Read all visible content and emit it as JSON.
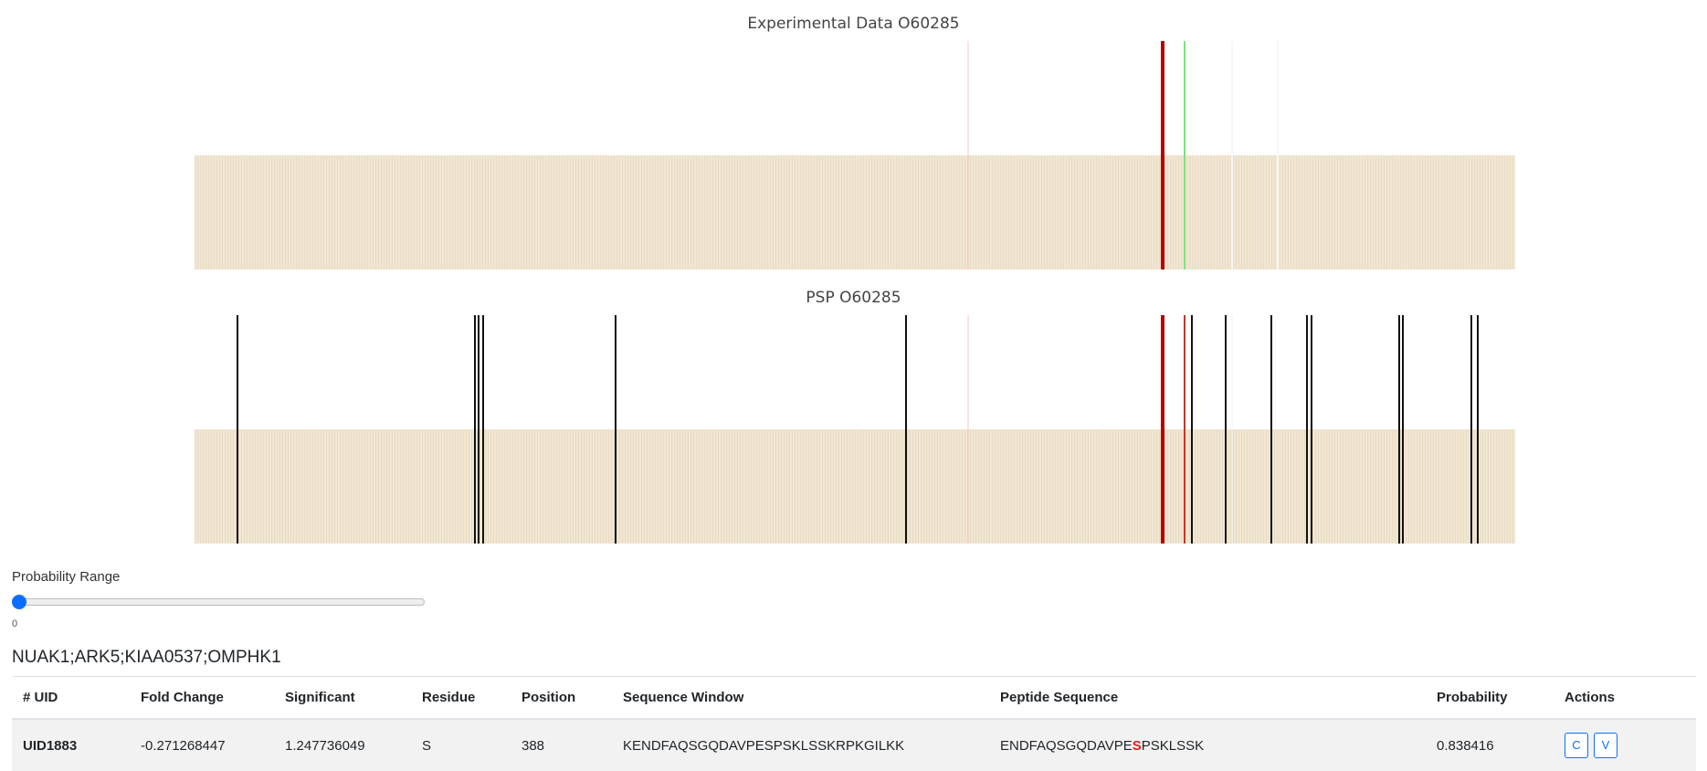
{
  "charts": {
    "experimental": {
      "title": "Experimental Data O60285",
      "marks": [
        {
          "pos": 847,
          "color": "#f2c7c7",
          "width": 1
        },
        {
          "pos": 1060,
          "color": "#b70000",
          "width": 4
        },
        {
          "pos": 1084,
          "color": "#7fe07f",
          "width": 2
        },
        {
          "pos": 1136,
          "color": "#f7f7f7",
          "width": 2
        },
        {
          "pos": 1186,
          "color": "#f7f7f7",
          "width": 2
        }
      ]
    },
    "psp": {
      "title": "PSP O60285",
      "marks": [
        {
          "pos": 47,
          "color": "#111111",
          "width": 2
        },
        {
          "pos": 307,
          "color": "#111111",
          "width": 2
        },
        {
          "pos": 311,
          "color": "#111111",
          "width": 2
        },
        {
          "pos": 316,
          "color": "#111111",
          "width": 2
        },
        {
          "pos": 461,
          "color": "#111111",
          "width": 2
        },
        {
          "pos": 779,
          "color": "#111111",
          "width": 2
        },
        {
          "pos": 847,
          "color": "#f2c7c7",
          "width": 1
        },
        {
          "pos": 1060,
          "color": "#b70000",
          "width": 4
        },
        {
          "pos": 1084,
          "color": "#c0392b",
          "width": 2
        },
        {
          "pos": 1092,
          "color": "#111111",
          "width": 2
        },
        {
          "pos": 1129,
          "color": "#111111",
          "width": 2
        },
        {
          "pos": 1136,
          "color": "#f0f0f0",
          "width": 1
        },
        {
          "pos": 1179,
          "color": "#111111",
          "width": 2
        },
        {
          "pos": 1218,
          "color": "#111111",
          "width": 2
        },
        {
          "pos": 1223,
          "color": "#111111",
          "width": 2
        },
        {
          "pos": 1319,
          "color": "#111111",
          "width": 2
        },
        {
          "pos": 1323,
          "color": "#111111",
          "width": 2
        },
        {
          "pos": 1398,
          "color": "#111111",
          "width": 2
        },
        {
          "pos": 1405,
          "color": "#111111",
          "width": 2
        }
      ]
    },
    "sequence_length": 1446,
    "background_color": "#f0e6d2"
  },
  "slider": {
    "label": "Probability Range",
    "value": "0",
    "fraction": 0
  },
  "protein_name": "NUAK1;ARK5;KIAA0537;OMPHK1",
  "table": {
    "headers": [
      "# UID",
      "Fold Change",
      "Significant",
      "Residue",
      "Position",
      "Sequence Window",
      "Peptide Sequence",
      "Probability",
      "Actions"
    ],
    "rows": [
      {
        "uid": "UID1883",
        "fold_change": "-0.271268447",
        "significant": "1.247736049",
        "residue": "S",
        "position": "388",
        "sequence_window": "KENDFAQSGQDAVPESPSKLSSKRPKGILKK",
        "peptide_before": "ENDFAQSGQDAVPE",
        "peptide_site": "S",
        "peptide_after": "PSKLSSK",
        "probability": "0.838416",
        "action_c": "C",
        "action_v": "V"
      }
    ]
  }
}
